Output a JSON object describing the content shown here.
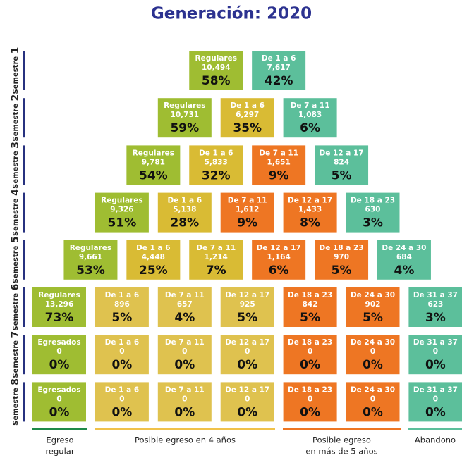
{
  "title": "Generación: 2020",
  "rows": [
    {
      "semester": "Semestre",
      "number": "1",
      "cells": [
        {
          "label": "Regulares",
          "count": "10,494",
          "percent": "58%",
          "color": "#9fbd32"
        },
        {
          "label": "De 1 a 6",
          "count": "7,617",
          "percent": "42%",
          "color": "#5cbf9b"
        }
      ]
    },
    {
      "semester": "Semestre",
      "number": "2",
      "cells": [
        {
          "label": "Regulares",
          "count": "10,731",
          "percent": "59%",
          "color": "#9fbd32"
        },
        {
          "label": "De 1 a 6",
          "count": "6,297",
          "percent": "35%",
          "color": "#d9bb34"
        },
        {
          "label": "De 7 a 11",
          "count": "1,083",
          "percent": "6%",
          "color": "#5cbf9b"
        }
      ]
    },
    {
      "semester": "Semestre",
      "number": "3",
      "cells": [
        {
          "label": "Regulares",
          "count": "9,781",
          "percent": "54%",
          "color": "#9fbd32"
        },
        {
          "label": "De 1 a 6",
          "count": "5,833",
          "percent": "32%",
          "color": "#d9bb34"
        },
        {
          "label": "De 7 a 11",
          "count": "1,651",
          "percent": "9%",
          "color": "#ee7623"
        },
        {
          "label": "De 12 a 17",
          "count": "824",
          "percent": "5%",
          "color": "#5cbf9b"
        }
      ]
    },
    {
      "semester": "Semestre",
      "number": "4",
      "cells": [
        {
          "label": "Regulares",
          "count": "9,326",
          "percent": "51%",
          "color": "#9fbd32"
        },
        {
          "label": "De 1 a 6",
          "count": "5,138",
          "percent": "28%",
          "color": "#d9bb34"
        },
        {
          "label": "De 7 a 11",
          "count": "1,612",
          "percent": "9%",
          "color": "#ee7623"
        },
        {
          "label": "De 12 a 17",
          "count": "1,433",
          "percent": "8%",
          "color": "#ee7623"
        },
        {
          "label": "De 18 a 23",
          "count": "630",
          "percent": "3%",
          "color": "#5cbf9b"
        }
      ]
    },
    {
      "semester": "Semestre",
      "number": "5",
      "cells": [
        {
          "label": "Regulares",
          "count": "9,661",
          "percent": "53%",
          "color": "#9fbd32"
        },
        {
          "label": "De 1 a 6",
          "count": "4,448",
          "percent": "25%",
          "color": "#d9bb34"
        },
        {
          "label": "De 7 a 11",
          "count": "1,214",
          "percent": "7%",
          "color": "#d9bb34"
        },
        {
          "label": "De 12 a 17",
          "count": "1,164",
          "percent": "6%",
          "color": "#ee7623"
        },
        {
          "label": "De 18 a 23",
          "count": "970",
          "percent": "5%",
          "color": "#ee7623"
        },
        {
          "label": "De 24 a 30",
          "count": "684",
          "percent": "4%",
          "color": "#5cbf9b"
        }
      ]
    },
    {
      "semester": "Semestre",
      "number": "6",
      "cells": [
        {
          "label": "Regulares",
          "count": "13,296",
          "percent": "73%",
          "color": "#9fbd32"
        },
        {
          "label": "De 1 a 6",
          "count": "896",
          "percent": "5%",
          "color": "#dfc24f"
        },
        {
          "label": "De 7 a 11",
          "count": "657",
          "percent": "4%",
          "color": "#dfc24f"
        },
        {
          "label": "De 12 a 17",
          "count": "925",
          "percent": "5%",
          "color": "#dfc24f"
        },
        {
          "label": "De 18 a 23",
          "count": "842",
          "percent": "5%",
          "color": "#ee7623"
        },
        {
          "label": "De 24 a 30",
          "count": "902",
          "percent": "5%",
          "color": "#ee7623"
        },
        {
          "label": "De 31 a 37",
          "count": "623",
          "percent": "3%",
          "color": "#5cbf9b"
        }
      ]
    },
    {
      "semester": "Semestre",
      "number": "7",
      "cells": [
        {
          "label": "Egresados",
          "count": "0",
          "percent": "0%",
          "color": "#9fbd32"
        },
        {
          "label": "De 1 a 6",
          "count": "0",
          "percent": "0%",
          "color": "#dfc24f"
        },
        {
          "label": "De 7 a 11",
          "count": "0",
          "percent": "0%",
          "color": "#dfc24f"
        },
        {
          "label": "De 12 a 17",
          "count": "0",
          "percent": "0%",
          "color": "#dfc24f"
        },
        {
          "label": "De 18 a 23",
          "count": "0",
          "percent": "0%",
          "color": "#ee7623"
        },
        {
          "label": "De 24 a 30",
          "count": "0",
          "percent": "0%",
          "color": "#ee7623"
        },
        {
          "label": "De 31 a 37",
          "count": "0",
          "percent": "0%",
          "color": "#5cbf9b"
        }
      ]
    },
    {
      "semester": "Semestre",
      "number": "8",
      "cells": [
        {
          "label": "Egresados",
          "count": "0",
          "percent": "0%",
          "color": "#9fbd32"
        },
        {
          "label": "De 1 a 6",
          "count": "0",
          "percent": "0%",
          "color": "#dfc24f"
        },
        {
          "label": "De 7 a 11",
          "count": "0",
          "percent": "0%",
          "color": "#dfc24f"
        },
        {
          "label": "De 12 a 17",
          "count": "0",
          "percent": "0%",
          "color": "#dfc24f"
        },
        {
          "label": "De 18 a 23",
          "count": "0",
          "percent": "0%",
          "color": "#ee7623"
        },
        {
          "label": "De 24 a 30",
          "count": "0",
          "percent": "0%",
          "color": "#ee7623"
        },
        {
          "label": "De 31 a 37",
          "count": "0",
          "percent": "0%",
          "color": "#5cbf9b"
        }
      ]
    }
  ],
  "legend": [
    {
      "lines": [
        "Egreso",
        "regular"
      ],
      "color": "#1e8a4a"
    },
    {
      "lines": [
        "Posible egreso en 4 años"
      ],
      "color": "#f0c24a"
    },
    {
      "lines": [
        "Posible egreso",
        "en más de 5 años"
      ],
      "color": "#ee7623"
    },
    {
      "lines": [
        "Abandono"
      ],
      "color": "#5cbf9b"
    }
  ]
}
